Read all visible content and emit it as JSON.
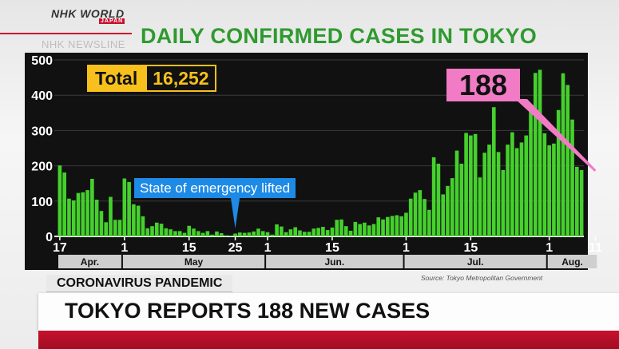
{
  "logo": {
    "brand": "NHK WORLD",
    "sub": "JAPAN"
  },
  "newsline": "NHK NEWSLINE",
  "section_label": "CORONAVIRUS PANDEMIC",
  "headline": "TOKYO REPORTS 188 NEW CASES",
  "source": "Source: Tokyo Metropolitan Government",
  "total": {
    "label": "Total",
    "value": "16,252"
  },
  "callout": "188",
  "annotation": "State of emergency lifted",
  "colors": {
    "title": "#2f9a2f",
    "bar": "#46d02d",
    "highlight_bar": "#f27bc6",
    "background": "#111111",
    "total_accent": "#f7c01d",
    "annotation_bg": "#1d8ae6",
    "brand_red": "#c8102e"
  },
  "chart_data": {
    "type": "bar",
    "title": "DAILY CONFIRMED CASES IN TOKYO",
    "ylim": [
      0,
      500
    ],
    "yticks": [
      0,
      100,
      200,
      300,
      400,
      500
    ],
    "grid": true,
    "x_start": "2020-04-17",
    "x_end": "2020-08-11",
    "xtick_labels": [
      {
        "date": "2020-04-17",
        "label": "17"
      },
      {
        "date": "2020-05-01",
        "label": "1"
      },
      {
        "date": "2020-05-15",
        "label": "15"
      },
      {
        "date": "2020-05-25",
        "label": "25"
      },
      {
        "date": "2020-06-01",
        "label": "1"
      },
      {
        "date": "2020-06-15",
        "label": "15"
      },
      {
        "date": "2020-07-01",
        "label": "1"
      },
      {
        "date": "2020-07-15",
        "label": "15"
      },
      {
        "date": "2020-08-01",
        "label": "1"
      },
      {
        "date": "2020-08-11",
        "label": "11"
      }
    ],
    "months": [
      {
        "label": "Apr.",
        "start": "2020-04-17",
        "end": "2020-04-30"
      },
      {
        "label": "May",
        "start": "2020-05-01",
        "end": "2020-05-31"
      },
      {
        "label": "Jun.",
        "start": "2020-06-01",
        "end": "2020-06-30"
      },
      {
        "label": "Jul.",
        "start": "2020-07-01",
        "end": "2020-07-31"
      },
      {
        "label": "Aug.",
        "start": "2020-08-01",
        "end": "2020-08-11"
      }
    ],
    "values": [
      201,
      181,
      107,
      102,
      123,
      125,
      131,
      163,
      104,
      72,
      40,
      112,
      47,
      47,
      164,
      154,
      91,
      87,
      57,
      23,
      29,
      39,
      36,
      23,
      20,
      15,
      15,
      10,
      30,
      22,
      15,
      10,
      15,
      5,
      14,
      9,
      3,
      2,
      8,
      11,
      10,
      11,
      14,
      22,
      15,
      12,
      5,
      34,
      28,
      12,
      20,
      26,
      17,
      13,
      13,
      22,
      24,
      27,
      18,
      25,
      47,
      48,
      29,
      16,
      41,
      35,
      39,
      31,
      35,
      54,
      48,
      55,
      58,
      60,
      57,
      67,
      107,
      124,
      131,
      106,
      75,
      224,
      206,
      119,
      143,
      165,
      243,
      206,
      293,
      286,
      290,
      167,
      237,
      260,
      366,
      239,
      188,
      260,
      295,
      250,
      266,
      286,
      367,
      463,
      472,
      292,
      258,
      263,
      358,
      462,
      429,
      331,
      197,
      188
    ],
    "highlight": {
      "date": "2020-08-11",
      "value": 188
    },
    "annotations": [
      {
        "date": "2020-05-25",
        "text_ref": "annotation"
      }
    ]
  }
}
